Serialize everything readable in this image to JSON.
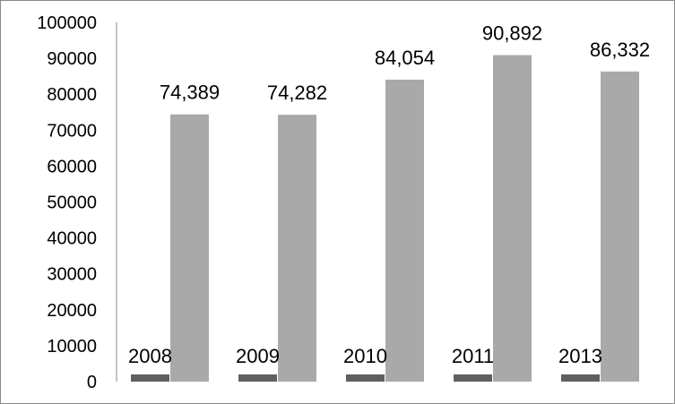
{
  "chart_data": {
    "type": "bar",
    "title": "",
    "xlabel": "",
    "ylabel": "",
    "ylim": [
      0,
      100000
    ],
    "yticks": [
      "0",
      "10000",
      "20000",
      "30000",
      "40000",
      "50000",
      "60000",
      "70000",
      "80000",
      "90000",
      "100000"
    ],
    "categories": [
      "2008",
      "2009",
      "2010",
      "2011",
      "2013"
    ],
    "series": [
      {
        "values": [
          2008,
          2009,
          2010,
          2011,
          2013
        ],
        "labels": [
          "2008",
          "2009",
          "2010",
          "2011",
          "2013"
        ],
        "color": "#5f5f5f"
      },
      {
        "values": [
          74389,
          74282,
          84054,
          90892,
          86332
        ],
        "labels": [
          "74,389",
          "74,282",
          "84,054",
          "90,892",
          "86,332"
        ],
        "color": "#a9a9a9"
      }
    ],
    "grid": false,
    "legend": "none"
  }
}
